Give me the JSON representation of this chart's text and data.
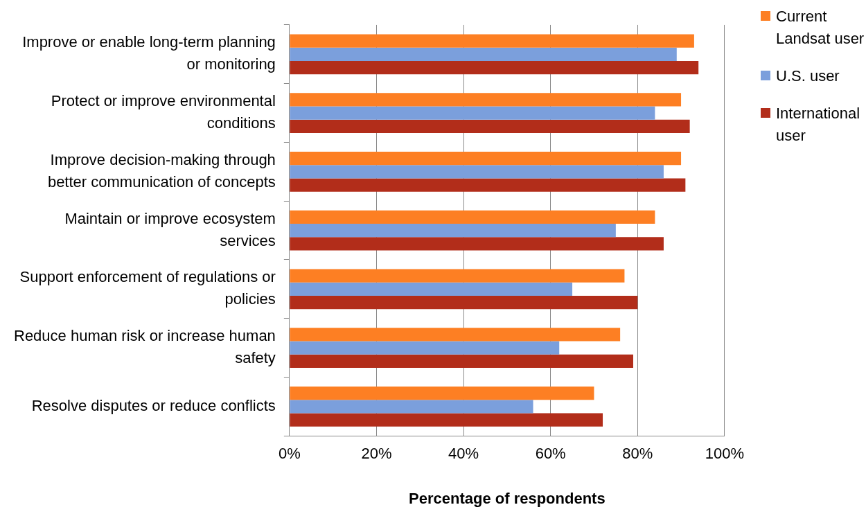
{
  "chart_data": {
    "type": "bar",
    "orientation": "horizontal",
    "xlabel": "Percentage of respondents",
    "categories": [
      "Improve or enable long-term planning or monitoring",
      "Protect or improve environmental conditions",
      "Improve decision-making through better communication of concepts",
      "Maintain or improve ecosystem services",
      "Support enforcement of regulations or policies",
      "Reduce human risk or increase human safety",
      "Resolve disputes or reduce conflicts"
    ],
    "series": [
      {
        "name": "Current Landsat user",
        "color": "#fd7f23",
        "values": [
          93,
          90,
          90,
          84,
          77,
          76,
          70
        ]
      },
      {
        "name": "U.S. user",
        "color": "#7b9fdc",
        "values": [
          89,
          84,
          86,
          75,
          65,
          62,
          56
        ]
      },
      {
        "name": "International user",
        "color": "#b22d1a",
        "values": [
          94,
          92,
          91,
          86,
          80,
          79,
          72
        ]
      }
    ],
    "xlim": [
      0,
      100
    ],
    "xticks": [
      {
        "value": 0,
        "label": "0%"
      },
      {
        "value": 20,
        "label": "20%"
      },
      {
        "value": 40,
        "label": "40%"
      },
      {
        "value": 60,
        "label": "60%"
      },
      {
        "value": 80,
        "label": "80%"
      },
      {
        "value": 100,
        "label": "100%"
      }
    ],
    "grid": "x",
    "legend": "right"
  }
}
